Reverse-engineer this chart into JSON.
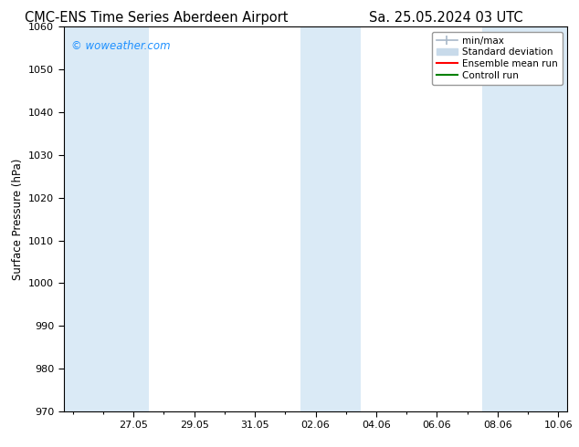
{
  "title_left": "CMC-ENS Time Series Aberdeen Airport",
  "title_right": "Sa. 25.05.2024 03 UTC",
  "ylabel": "Surface Pressure (hPa)",
  "ylim": [
    970,
    1060
  ],
  "yticks": [
    970,
    980,
    990,
    1000,
    1010,
    1020,
    1030,
    1040,
    1050,
    1060
  ],
  "xlim": [
    -0.3,
    16.3
  ],
  "xtick_labels": [
    "27.05",
    "29.05",
    "31.05",
    "02.06",
    "04.06",
    "06.06",
    "08.06",
    "10.06"
  ],
  "xtick_positions": [
    2,
    4,
    6,
    8,
    10,
    12,
    14,
    16
  ],
  "background_color": "#ffffff",
  "plot_bg_color": "#ffffff",
  "shaded_bands": [
    {
      "x_start": -0.3,
      "x_end": 2.5,
      "color": "#daeaf6"
    },
    {
      "x_start": 7.5,
      "x_end": 9.5,
      "color": "#daeaf6"
    },
    {
      "x_start": 13.5,
      "x_end": 16.3,
      "color": "#daeaf6"
    }
  ],
  "legend_items": [
    {
      "label": "min/max",
      "color": "#a8b8c8",
      "lw": 1.5
    },
    {
      "label": "Standard deviation",
      "color": "#c8daea",
      "lw": 8
    },
    {
      "label": "Ensemble mean run",
      "color": "#ff0000",
      "lw": 1.5
    },
    {
      "label": "Controll run",
      "color": "#008000",
      "lw": 1.5
    }
  ],
  "watermark": "© woweather.com",
  "watermark_color": "#1e90ff",
  "title_fontsize": 10.5,
  "axis_fontsize": 8.5,
  "tick_fontsize": 8
}
